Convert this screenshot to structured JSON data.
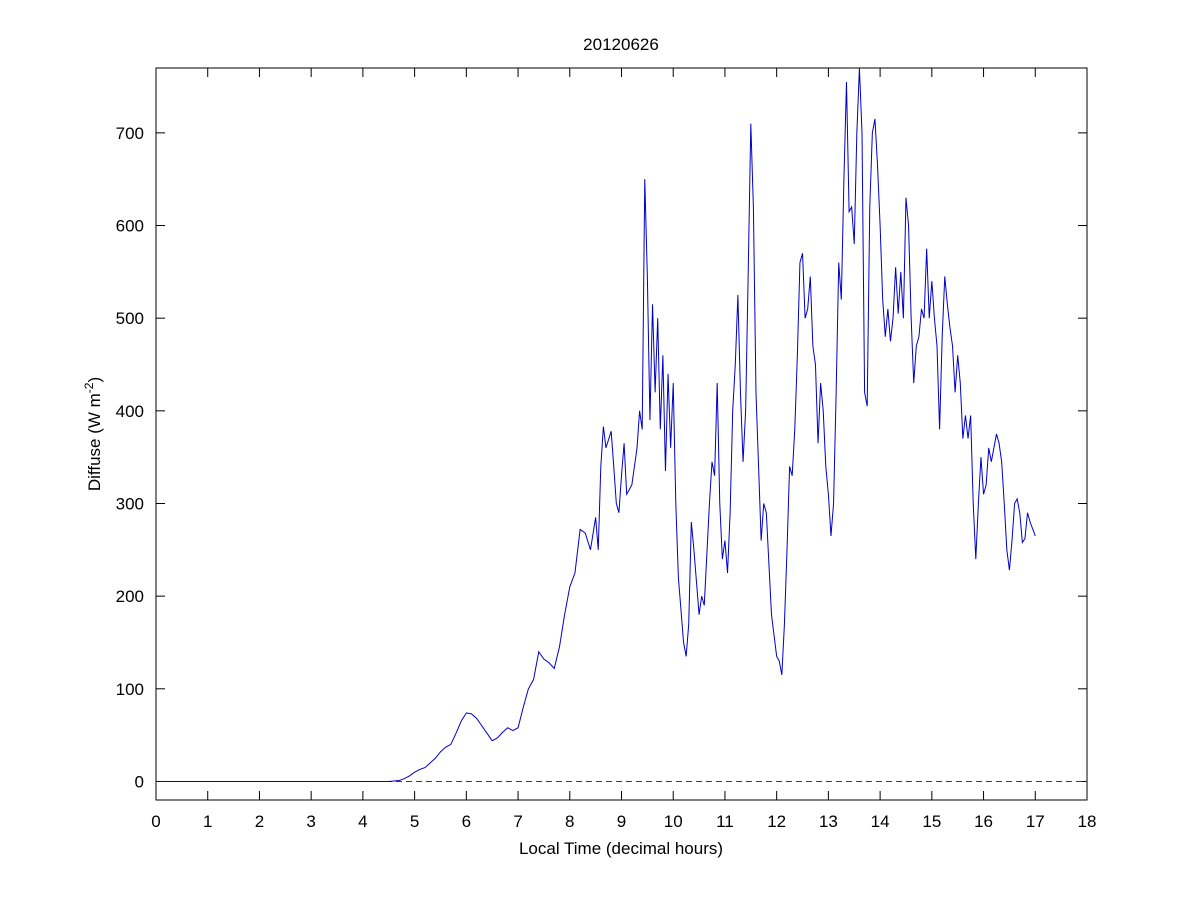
{
  "chart_data": {
    "type": "line",
    "title": "20120626",
    "xlabel": "Local Time (decimal hours)",
    "ylabel": "Diffuse (W m",
    "ylabel_superscript": "-2",
    "ylabel_suffix": ")",
    "xlim": [
      0,
      18
    ],
    "xticks": [
      0,
      1,
      2,
      3,
      4,
      5,
      6,
      7,
      8,
      9,
      10,
      11,
      12,
      13,
      14,
      15,
      16,
      17,
      18
    ],
    "ylim": [
      -20,
      770
    ],
    "yticks": [
      0,
      100,
      200,
      300,
      400,
      500,
      600,
      700
    ],
    "grid": false,
    "box": true,
    "reference_line": {
      "value": 0,
      "color": "#cc0000",
      "style": "dashed"
    },
    "x": [
      0,
      4.5,
      4.7,
      4.8,
      4.9,
      5.0,
      5.1,
      5.2,
      5.3,
      5.4,
      5.5,
      5.6,
      5.7,
      5.8,
      5.9,
      6.0,
      6.1,
      6.2,
      6.3,
      6.4,
      6.5,
      6.6,
      6.7,
      6.8,
      6.9,
      7.0,
      7.1,
      7.2,
      7.3,
      7.4,
      7.5,
      7.6,
      7.7,
      7.8,
      7.9,
      8.0,
      8.1,
      8.2,
      8.3,
      8.4,
      8.5,
      8.55,
      8.6,
      8.65,
      8.7,
      8.8,
      8.85,
      8.9,
      8.95,
      9.0,
      9.05,
      9.1,
      9.2,
      9.3,
      9.35,
      9.4,
      9.45,
      9.5,
      9.55,
      9.6,
      9.65,
      9.7,
      9.75,
      9.8,
      9.85,
      9.9,
      9.95,
      10.0,
      10.05,
      10.1,
      10.2,
      10.25,
      10.3,
      10.35,
      10.4,
      10.5,
      10.55,
      10.6,
      10.7,
      10.75,
      10.8,
      10.85,
      10.9,
      10.95,
      11.0,
      11.05,
      11.1,
      11.15,
      11.2,
      11.25,
      11.3,
      11.35,
      11.4,
      11.45,
      11.5,
      11.55,
      11.6,
      11.7,
      11.75,
      11.8,
      11.9,
      12.0,
      12.05,
      12.1,
      12.15,
      12.2,
      12.25,
      12.3,
      12.35,
      12.4,
      12.45,
      12.5,
      12.55,
      12.6,
      12.65,
      12.7,
      12.75,
      12.8,
      12.85,
      12.9,
      12.95,
      13.0,
      13.05,
      13.1,
      13.15,
      13.2,
      13.25,
      13.3,
      13.35,
      13.4,
      13.45,
      13.5,
      13.55,
      13.6,
      13.65,
      13.7,
      13.75,
      13.8,
      13.85,
      13.9,
      13.95,
      14.0,
      14.05,
      14.1,
      14.15,
      14.2,
      14.25,
      14.3,
      14.35,
      14.4,
      14.45,
      14.5,
      14.55,
      14.6,
      14.65,
      14.7,
      14.75,
      14.8,
      14.85,
      14.9,
      14.95,
      15.0,
      15.05,
      15.1,
      15.15,
      15.2,
      15.25,
      15.3,
      15.35,
      15.4,
      15.45,
      15.5,
      15.55,
      15.6,
      15.65,
      15.7,
      15.75,
      15.8,
      15.85,
      15.9,
      15.95,
      16.0,
      16.05,
      16.1,
      16.15,
      16.2,
      16.25,
      16.3,
      16.35,
      16.4,
      16.45,
      16.5,
      16.55,
      16.6,
      16.65,
      16.7,
      16.75,
      16.8,
      16.85,
      16.9,
      17.0
    ],
    "series": [
      {
        "name": "Diffuse",
        "color": "#0000c8",
        "values": [
          0,
          0,
          1,
          3,
          6,
          10,
          13,
          15,
          20,
          25,
          32,
          37,
          40,
          52,
          65,
          74,
          73,
          68,
          60,
          52,
          44,
          47,
          53,
          58,
          55,
          58,
          80,
          100,
          110,
          140,
          132,
          128,
          122,
          145,
          180,
          210,
          225,
          272,
          268,
          250,
          285,
          250,
          340,
          383,
          360,
          378,
          340,
          300,
          290,
          330,
          365,
          310,
          320,
          360,
          400,
          380,
          650,
          545,
          390,
          515,
          420,
          500,
          380,
          460,
          335,
          440,
          360,
          430,
          300,
          220,
          150,
          135,
          170,
          280,
          250,
          180,
          200,
          190,
          300,
          345,
          330,
          430,
          300,
          240,
          260,
          225,
          290,
          400,
          450,
          525,
          420,
          345,
          400,
          550,
          710,
          620,
          420,
          260,
          300,
          290,
          180,
          135,
          130,
          115,
          170,
          250,
          340,
          330,
          380,
          460,
          560,
          570,
          500,
          510,
          545,
          470,
          450,
          365,
          430,
          400,
          340,
          310,
          265,
          300,
          420,
          560,
          520,
          650,
          755,
          615,
          620,
          580,
          700,
          770,
          700,
          420,
          405,
          620,
          700,
          715,
          665,
          600,
          520,
          480,
          510,
          475,
          500,
          555,
          505,
          550,
          500,
          630,
          600,
          500,
          430,
          470,
          480,
          510,
          500,
          575,
          500,
          540,
          500,
          470,
          380,
          480,
          545,
          515,
          490,
          470,
          420,
          460,
          430,
          370,
          395,
          370,
          395,
          300,
          240,
          300,
          350,
          310,
          320,
          360,
          345,
          360,
          375,
          365,
          345,
          300,
          250,
          228,
          260,
          300,
          305,
          290,
          258,
          262,
          290,
          280,
          265
        ]
      }
    ]
  }
}
